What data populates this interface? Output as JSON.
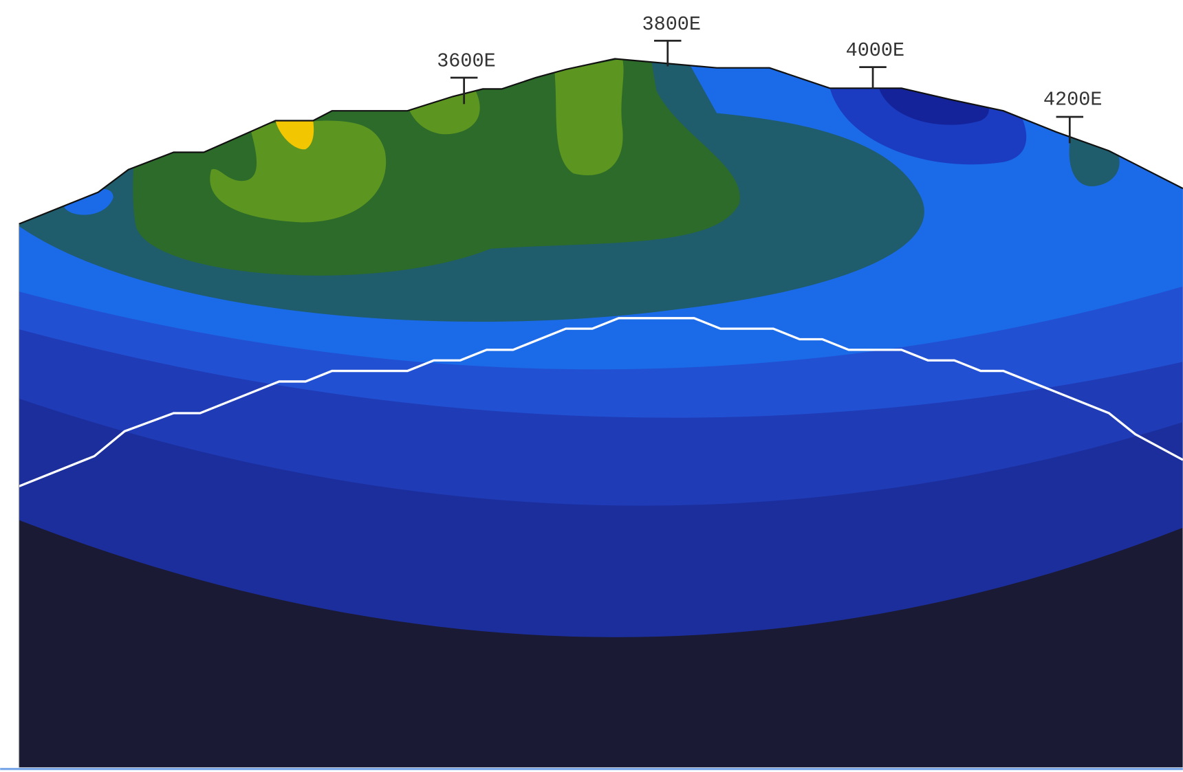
{
  "stations": [
    {
      "label": "3600E"
    },
    {
      "label": "3800E"
    },
    {
      "label": "4000E"
    },
    {
      "label": "4200E"
    }
  ]
}
